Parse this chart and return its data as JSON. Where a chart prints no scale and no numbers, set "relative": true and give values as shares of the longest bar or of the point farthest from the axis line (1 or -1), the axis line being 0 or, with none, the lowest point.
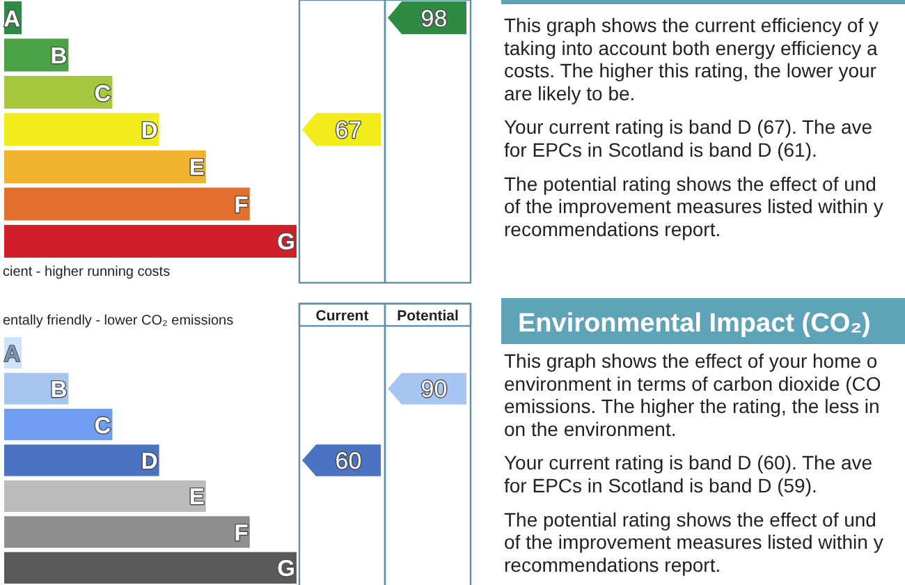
{
  "chart_data": [
    {
      "type": "bar",
      "orientation": "horizontal",
      "relative": true,
      "categories": [
        "A",
        "B",
        "C",
        "D",
        "E",
        "F",
        "G"
      ],
      "values": [
        0.06,
        0.22,
        0.37,
        0.53,
        0.69,
        0.84,
        1
      ],
      "colors": [
        "#2f8b43",
        "#4ba245",
        "#a5c83f",
        "#f3ec1b",
        "#f0b22f",
        "#e0702b",
        "#d01e2a"
      ],
      "xlabel": "cient - higher running costs"
    },
    {
      "type": "other",
      "categories": [
        null,
        null
      ],
      "annotations": [
        "67",
        "98"
      ],
      "colors": [
        "#f3ec1b",
        "#2f8b43"
      ]
    },
    {
      "type": "other",
      "annotations": [
        "This graph shows the current efficiency of y\ntaking into account both energy efficiency a\ncosts. The higher this rating, the lower your\nare likely to be.",
        "Your current rating is band D (67). The ave\nfor EPCs in Scotland is band D (61).",
        "The potential rating shows the effect of und\nof the improvement measures listed within y\nrecommendations report."
      ]
    },
    {
      "type": "bar",
      "orientation": "horizontal",
      "relative": true,
      "categories": [
        "A",
        "B",
        "C",
        "D",
        "E",
        "F",
        "G"
      ],
      "values": [
        0.06,
        0.22,
        0.37,
        0.53,
        0.69,
        0.84,
        1
      ],
      "colors": [
        "#cfe2fa",
        "#a6c5f0",
        "#6f9ef0",
        "#4a73c2",
        "#bcbcbc",
        "#8e8e8e",
        "#5a5a5a"
      ],
      "title": "entally friendly - lower CO₂ emissions"
    },
    {
      "type": "other",
      "categories": [
        "Current",
        "Potential"
      ],
      "values": [
        60,
        90
      ],
      "colors": [
        "#4a73c2",
        "#a6c5f0"
      ],
      "data_labels": true
    },
    {
      "type": "other",
      "title": "Environmental Impact (CO₂)",
      "annotations": [
        "This graph shows the effect of your home o\nenvironment in terms of carbon dioxide (CO\nemissions. The higher the rating, the less in\non the environment.",
        "Your current rating is band D (60). The ave\nfor EPCs in Scotland is band D (59).",
        "The potential rating shows the effect of und\nof the improvement measures listed within y\nrecommendations report."
      ]
    }
  ]
}
